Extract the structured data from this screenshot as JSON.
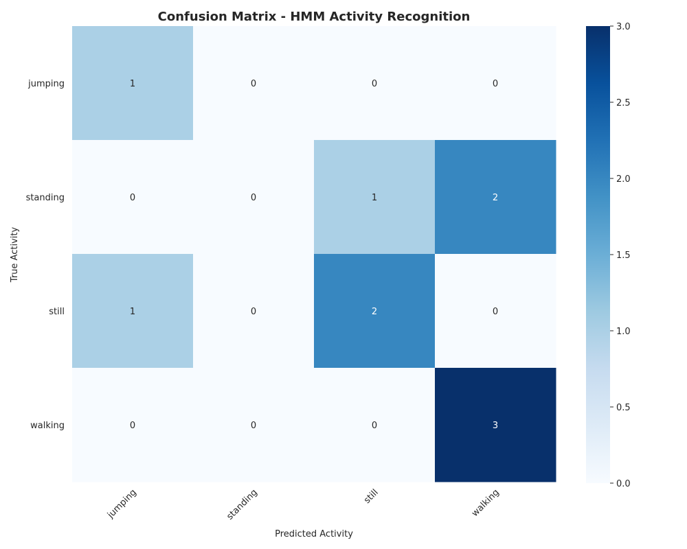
{
  "chart_data": {
    "type": "heatmap",
    "title": "Confusion Matrix - HMM Activity Recognition",
    "xlabel": "Predicted Activity",
    "ylabel": "True Activity",
    "x_categories": [
      "jumping",
      "standing",
      "still",
      "walking"
    ],
    "y_categories": [
      "jumping",
      "standing",
      "still",
      "walking"
    ],
    "values": [
      [
        1,
        0,
        0,
        0
      ],
      [
        0,
        0,
        1,
        2
      ],
      [
        1,
        0,
        2,
        0
      ],
      [
        0,
        0,
        0,
        3
      ]
    ],
    "colorbar": {
      "range": [
        0,
        3
      ],
      "ticks": [
        "0.0",
        "0.5",
        "1.0",
        "1.5",
        "2.0",
        "2.5",
        "3.0"
      ],
      "colormap": "Blues",
      "low_color": "#f7fbff",
      "high_color": "#08306b"
    },
    "grid": false
  }
}
